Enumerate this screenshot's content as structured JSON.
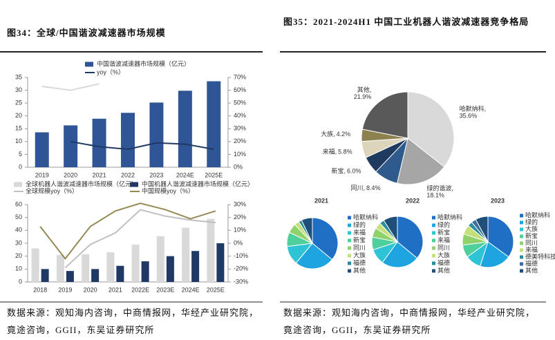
{
  "left": {
    "title": "图34：全球/中国谐波减速器市场规模",
    "source": "数据来源：观知海内咨询，中商情报网，华经产业研究院，竟途咨询，GGII，东吴证券研究所"
  },
  "right": {
    "title": "图35：2021-2024H1 中国工业机器人谐波减速器竞争格局",
    "source": "数据来源：观知海内咨询，中商情报网，华经产业研究院，竟途咨询，GGII，东吴证券研究所"
  },
  "chart_data": [
    {
      "type": "bar",
      "categories": [
        "2019",
        "2020",
        "2021",
        "2022",
        "2023",
        "2024E",
        "2025E"
      ],
      "series": [
        {
          "name": "中国谐波减速器市场规模（亿元）",
          "type": "bar",
          "color": "#2f5597",
          "values": [
            13.6,
            16.3,
            18.9,
            21.2,
            25.2,
            29.8,
            33.5
          ]
        },
        {
          "name": "yoy（%）",
          "type": "line",
          "axis": "y2",
          "color": "#1f3864",
          "values": [
            null,
            20,
            16,
            14,
            19,
            18,
            14
          ]
        },
        {
          "type": "line",
          "axis": "y2",
          "color": "#d9d9d9",
          "values": [
            63,
            60,
            65,
            null,
            null,
            null,
            null
          ]
        }
      ],
      "ylim": [
        0,
        35
      ],
      "yticks": [
        0,
        5,
        10,
        15,
        20,
        25,
        30,
        35
      ],
      "y2lim": [
        0,
        70
      ],
      "y2ticks": [
        {
          "value": 0,
          "label": "0%"
        },
        {
          "value": 10,
          "label": "10%"
        },
        {
          "value": 20,
          "label": "20%"
        },
        {
          "value": 30,
          "label": "30%"
        },
        {
          "value": 40,
          "label": "40%"
        },
        {
          "value": 50,
          "label": "50%"
        },
        {
          "value": 60,
          "label": "60%"
        },
        {
          "value": 70,
          "label": "70%"
        }
      ]
    },
    {
      "type": "bar",
      "categories": [
        "2018",
        "2019",
        "2020",
        "2021",
        "2022E",
        "2023E",
        "2024E",
        "2025E"
      ],
      "series": [
        {
          "name": "全球机器人谐波减速器市场规模（亿元）",
          "type": "bar",
          "color": "#d9d9d9",
          "values": [
            26,
            21,
            21.5,
            23,
            29,
            35.5,
            42,
            49
          ]
        },
        {
          "name": "中国机器人谐波减速器市场规模（亿元）",
          "type": "bar",
          "color": "#1f3864",
          "values": [
            10,
            8.5,
            10,
            12.5,
            16,
            20,
            24,
            30
          ]
        },
        {
          "name": "全球规模yoy（%）",
          "type": "line",
          "axis": "y2",
          "color": "#bfbfbf",
          "values": [
            null,
            -19,
            -1,
            8,
            26,
            21,
            18,
            16
          ]
        },
        {
          "name": "中国规模yoy（%）",
          "type": "line",
          "axis": "y2",
          "color": "#948a54",
          "values": [
            13,
            -12,
            13,
            25,
            31,
            26,
            19,
            25
          ]
        }
      ],
      "ylim": [
        0,
        60
      ],
      "yticks": [
        0,
        10,
        20,
        30,
        40,
        50,
        60
      ],
      "y2lim": [
        -30,
        30
      ],
      "y2ticks": [
        {
          "value": -30,
          "label": "-30%"
        },
        {
          "value": -20,
          "label": "-20%"
        },
        {
          "value": -10,
          "label": "-10%"
        },
        {
          "value": 0,
          "label": "0%"
        },
        {
          "value": 10,
          "label": "10%"
        },
        {
          "value": 20,
          "label": "20%"
        },
        {
          "value": 30,
          "label": "30%"
        }
      ]
    },
    {
      "type": "pie",
      "categories": [
        "哈默纳科,",
        "绿的谐波,",
        "同川,",
        "新宝,",
        "来福,",
        "大族,",
        "其他,"
      ],
      "values": [
        35.6,
        18.1,
        8.4,
        6.0,
        5.8,
        4.2,
        21.9
      ],
      "value_labels": [
        "35.6%",
        "18.1%",
        "8.4%",
        "6.0%",
        "5.8%",
        "4.2%",
        "21.9%"
      ],
      "colors": [
        "#d9d9d9",
        "#a6a6a6",
        "#2e5a8c",
        "#1f3a5f",
        "#ddd5bb",
        "#8c8250",
        "#595959"
      ]
    },
    {
      "type": "pie",
      "title": "2021",
      "categories": [
        "哈默纳科",
        "绿的",
        "来福",
        "新宝",
        "同川",
        "大族",
        "福德",
        "其他"
      ],
      "values": [
        36,
        25,
        12,
        9,
        6,
        3,
        2,
        7
      ],
      "colors": [
        "#1f6fc4",
        "#1ea5e0",
        "#2ec4d6",
        "#4fcf9c",
        "#8fd16a",
        "#c5df7b",
        "#2b8c9c",
        "#1f4e79"
      ]
    },
    {
      "type": "pie",
      "title": "2022",
      "categories": [
        "哈默纳科",
        "绿的",
        "新宝",
        "来福",
        "同川",
        "大族",
        "福德",
        "其他"
      ],
      "values": [
        36,
        24,
        10,
        8,
        6,
        4,
        3,
        9
      ],
      "colors": [
        "#1f6fc4",
        "#1ea5e0",
        "#2ec4d6",
        "#4fcf9c",
        "#8fd16a",
        "#c5df7b",
        "#2b8c9c",
        "#1f4e79"
      ]
    },
    {
      "type": "pie",
      "title": "2023",
      "categories": [
        "哈默纳科",
        "绿的",
        "大族",
        "新宝",
        "同川",
        "来福",
        "德美特科技",
        "福德",
        "其他"
      ],
      "values": [
        35,
        20,
        10,
        8,
        7,
        6,
        3,
        3,
        8
      ],
      "colors": [
        "#1f6fc4",
        "#1ea5e0",
        "#2ec4d6",
        "#4fcf9c",
        "#8fd16a",
        "#c5df7b",
        "#2b8c9c",
        "#3b6e9e",
        "#1f4e79"
      ]
    }
  ]
}
